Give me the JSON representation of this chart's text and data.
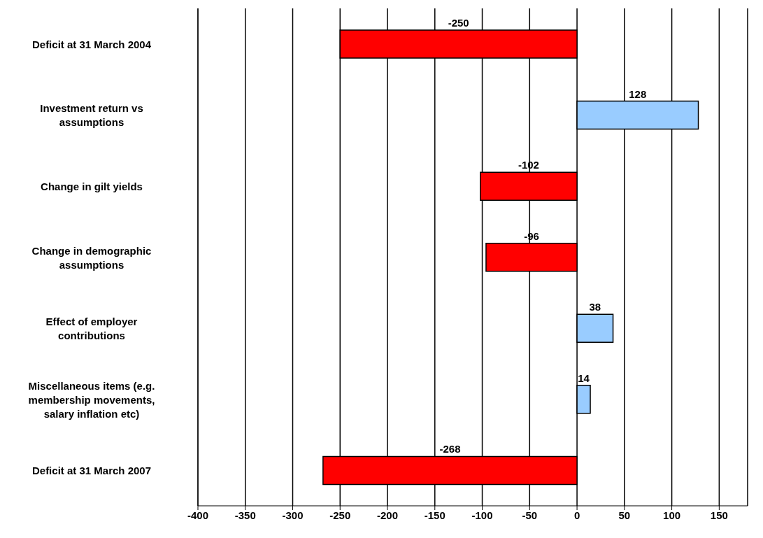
{
  "chart_data": {
    "type": "bar",
    "orientation": "horizontal",
    "categories": [
      "Deficit at 31 March 2004",
      "Investment return vs assumptions",
      "Change in gilt yields",
      "Change in demographic assumptions",
      "Effect of employer contributions",
      "Miscellaneous items (e.g. membership movements, salary inflation etc)",
      "Deficit at 31 March 2007"
    ],
    "values": [
      -250,
      128,
      -102,
      -96,
      38,
      14,
      -268
    ],
    "colors": [
      "#ff0000",
      "#99ccff",
      "#ff0000",
      "#ff0000",
      "#99ccff",
      "#99ccff",
      "#ff0000"
    ],
    "xlim": [
      -400,
      180
    ],
    "xticks": [
      -400,
      -350,
      -300,
      -250,
      -200,
      -150,
      -100,
      -50,
      0,
      50,
      100,
      150
    ],
    "grid": "x",
    "data_labels": true,
    "legend": false
  }
}
